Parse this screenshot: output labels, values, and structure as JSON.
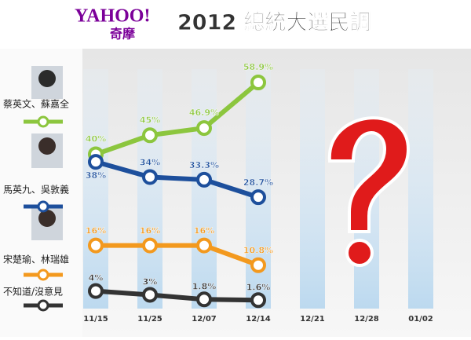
{
  "logo": {
    "text": "YAHOO!",
    "sub": "奇摩"
  },
  "chart_data": {
    "type": "line",
    "title": "2012 總統大選民調",
    "categories": [
      "11/15",
      "11/25",
      "12/07",
      "12/14",
      "12/21",
      "12/28",
      "01/02"
    ],
    "series": [
      {
        "name": "蔡英文、蘇嘉全",
        "color": "#8cc63e",
        "values": [
          40,
          45,
          46.9,
          58.9,
          null,
          null,
          null
        ],
        "value_labels": [
          "40%",
          "45%",
          "46.9%",
          "58.9%",
          null,
          null,
          null
        ]
      },
      {
        "name": "馬英九、吳敦義",
        "color": "#1d4f9c",
        "values": [
          38,
          34,
          33.3,
          28.7,
          null,
          null,
          null
        ],
        "value_labels": [
          "38%",
          "34%",
          "33.3%",
          "28.7%",
          null,
          null,
          null
        ]
      },
      {
        "name": "宋楚瑜、林瑞雄",
        "color": "#f3991e",
        "values": [
          16,
          16,
          16,
          10.8,
          null,
          null,
          null
        ],
        "value_labels": [
          "16%",
          "16%",
          "16%",
          "10.8%",
          null,
          null,
          null
        ]
      },
      {
        "name": "不知道/沒意見",
        "color": "#333333",
        "values": [
          4,
          3,
          1.8,
          1.6,
          null,
          null,
          null
        ],
        "value_labels": [
          "4%",
          "3%",
          "1.8%",
          "1.6%",
          null,
          null,
          null
        ]
      }
    ]
  }
}
